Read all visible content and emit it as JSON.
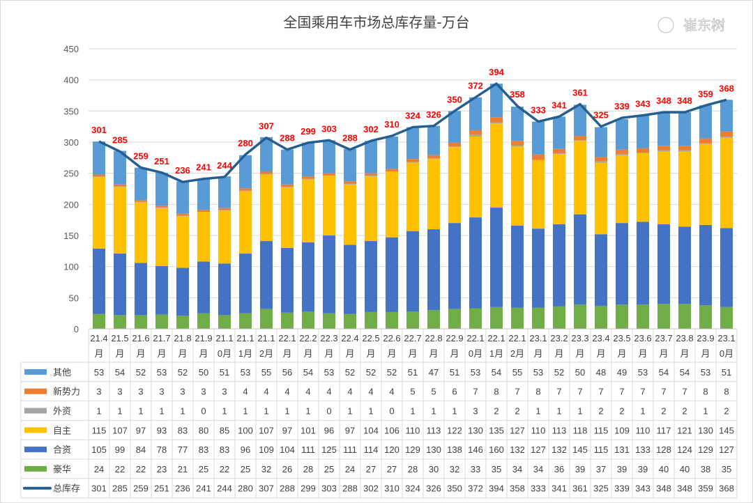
{
  "chart_data": {
    "type": "bar",
    "stacked": true,
    "title": "全国乘用车市场总库存量-万台",
    "ylim": [
      0,
      450
    ],
    "yticks": [
      0,
      50,
      100,
      150,
      200,
      250,
      300,
      350,
      400,
      450
    ],
    "grid": true,
    "legend": "data-table",
    "categories": [
      "21.4月",
      "21.5月",
      "21.6月",
      "21.7月",
      "21.8月",
      "21.9月",
      "21.10月",
      "21.11月",
      "21.12月",
      "22.1月",
      "22.2月",
      "22.3月",
      "22.4月",
      "22.5月",
      "22.6月",
      "22.7月",
      "22.8月",
      "22.9月",
      "22.10月",
      "22.11月",
      "22.12月",
      "23.1月",
      "23.2月",
      "23.3月",
      "23.4月",
      "23.5月",
      "23.6月",
      "23.7月",
      "23.8月",
      "23.9月",
      "23.10月"
    ],
    "series": [
      {
        "name": "其他",
        "color": "#5B9BD5",
        "values": [
          53,
          54,
          52,
          53,
          52,
          50,
          51,
          53,
          55,
          56,
          54,
          53,
          52,
          52,
          52,
          51,
          47,
          51,
          53,
          54,
          55,
          53,
          52,
          50,
          48,
          49,
          53,
          54,
          54,
          53,
          51
        ]
      },
      {
        "name": "新势力",
        "color": "#ED7D31",
        "values": [
          3,
          3,
          3,
          3,
          3,
          3,
          3,
          4,
          4,
          4,
          4,
          4,
          4,
          4,
          4,
          5,
          5,
          6,
          7,
          8,
          7,
          8,
          7,
          7,
          7,
          7,
          7,
          7,
          7,
          8,
          8
        ]
      },
      {
        "name": "外资",
        "color": "#A5A5A5",
        "values": [
          1,
          1,
          1,
          1,
          1,
          0,
          1,
          1,
          1,
          1,
          1,
          0,
          1,
          1,
          0,
          1,
          1,
          1,
          3,
          2,
          2,
          1,
          1,
          1,
          2,
          2,
          1,
          2,
          2,
          1,
          2
        ]
      },
      {
        "name": "自主",
        "color": "#FFC000",
        "values": [
          115,
          107,
          97,
          93,
          83,
          80,
          85,
          100,
          107,
          97,
          101,
          96,
          97,
          104,
          106,
          110,
          113,
          122,
          130,
          135,
          127,
          110,
          113,
          118,
          115,
          109,
          110,
          117,
          121,
          130,
          145
        ]
      },
      {
        "name": "合资",
        "color": "#4472C4",
        "values": [
          105,
          99,
          84,
          78,
          77,
          83,
          83,
          96,
          109,
          104,
          111,
          125,
          111,
          114,
          120,
          129,
          130,
          138,
          146,
          160,
          132,
          127,
          132,
          145,
          115,
          131,
          133,
          128,
          124,
          129,
          127
        ]
      },
      {
        "name": "豪华",
        "color": "#70AD47",
        "values": [
          24,
          22,
          22,
          23,
          21,
          25,
          22,
          25,
          32,
          26,
          28,
          25,
          24,
          27,
          27,
          28,
          30,
          32,
          33,
          35,
          34,
          34,
          36,
          39,
          37,
          39,
          39,
          40,
          40,
          38,
          35
        ]
      },
      {
        "name": "总库存",
        "color": "#255E91",
        "type": "line",
        "values": [
          301,
          285,
          259,
          251,
          236,
          241,
          244,
          280,
          307,
          288,
          299,
          303,
          288,
          302,
          310,
          324,
          326,
          350,
          372,
          394,
          358,
          333,
          341,
          361,
          325,
          339,
          343,
          348,
          348,
          359,
          368
        ]
      }
    ]
  },
  "watermark": "崔东树"
}
